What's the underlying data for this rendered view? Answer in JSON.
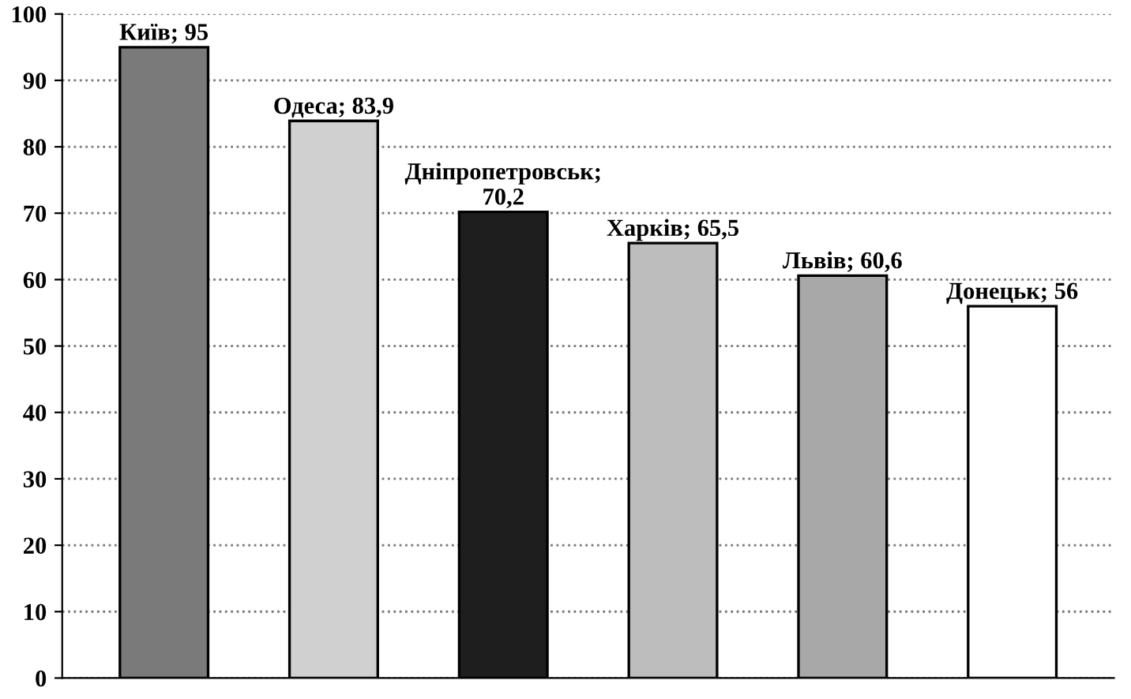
{
  "chart_data": {
    "type": "bar",
    "categories": [
      null,
      null,
      null,
      null,
      null,
      null
    ],
    "values": [
      95,
      83.9,
      70.2,
      65.5,
      60.6,
      56
    ],
    "colors": [
      "#7a7a7a",
      "#d0d0d0",
      "#1e1e1e",
      "#bdbdbd",
      "#a8a8a8",
      "#ffffff"
    ],
    "value_labels": [
      "Київ; 95",
      "Одеса; 83,9",
      "Дніпропетровськ;\n70,2",
      "Харків; 65,5",
      "Львів; 60,6",
      "Донецьк; 56"
    ],
    "ylim": [
      0,
      100
    ],
    "yticks": [
      0,
      10,
      20,
      30,
      40,
      50,
      60,
      70,
      80,
      90,
      100
    ],
    "grid": "y",
    "legend": false
  }
}
